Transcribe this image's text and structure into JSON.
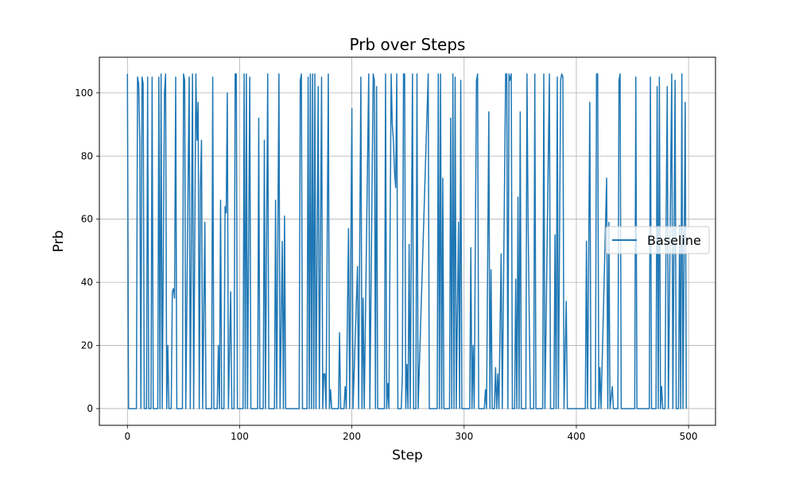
{
  "chart_data": {
    "type": "line",
    "title": "Prb over Steps",
    "xlabel": "Step",
    "ylabel": "Prb",
    "xlim": [
      -25,
      524
    ],
    "ylim": [
      -5.3,
      111.3
    ],
    "xticks": [
      0,
      100,
      200,
      300,
      400,
      500
    ],
    "yticks": [
      0,
      20,
      40,
      60,
      80,
      100
    ],
    "grid": true,
    "legend": {
      "placement": "center-right",
      "entries": [
        "Baseline"
      ]
    },
    "series": [
      {
        "name": "Baseline",
        "color": "#1f77b4",
        "points": [
          [
            0,
            106
          ],
          [
            1,
            0
          ],
          [
            8,
            0
          ],
          [
            9,
            105
          ],
          [
            10,
            103
          ],
          [
            11,
            85
          ],
          [
            12,
            0
          ],
          [
            13,
            105
          ],
          [
            14,
            103
          ],
          [
            15,
            0
          ],
          [
            17,
            0
          ],
          [
            18,
            105
          ],
          [
            19,
            0
          ],
          [
            21,
            0
          ],
          [
            22,
            105
          ],
          [
            23,
            0
          ],
          [
            27,
            0
          ],
          [
            28,
            105
          ],
          [
            29,
            0
          ],
          [
            30,
            106
          ],
          [
            31,
            0
          ],
          [
            33,
            100
          ],
          [
            34,
            106
          ],
          [
            35,
            0
          ],
          [
            36,
            20
          ],
          [
            37,
            0
          ],
          [
            39,
            0
          ],
          [
            40,
            37
          ],
          [
            41,
            38
          ],
          [
            42,
            35
          ],
          [
            43,
            105
          ],
          [
            44,
            0
          ],
          [
            49,
            0
          ],
          [
            50,
            106
          ],
          [
            51,
            104
          ],
          [
            52,
            0
          ],
          [
            55,
            105
          ],
          [
            56,
            0
          ],
          [
            58,
            106
          ],
          [
            59,
            0
          ],
          [
            61,
            106
          ],
          [
            62,
            85
          ],
          [
            63,
            97
          ],
          [
            64,
            0
          ],
          [
            65,
            70
          ],
          [
            66,
            85
          ],
          [
            67,
            0
          ],
          [
            69,
            59
          ],
          [
            70,
            0
          ],
          [
            75,
            0
          ],
          [
            76,
            105
          ],
          [
            77,
            0
          ],
          [
            80,
            0
          ],
          [
            81,
            20
          ],
          [
            82,
            0
          ],
          [
            83,
            66
          ],
          [
            84,
            0
          ],
          [
            86,
            0
          ],
          [
            87,
            64
          ],
          [
            88,
            62
          ],
          [
            89,
            100
          ],
          [
            90,
            0
          ],
          [
            92,
            37
          ],
          [
            93,
            0
          ],
          [
            95,
            0
          ],
          [
            96,
            106
          ],
          [
            97,
            106
          ],
          [
            98,
            0
          ],
          [
            103,
            0
          ],
          [
            104,
            106
          ],
          [
            105,
            0
          ],
          [
            106,
            106
          ],
          [
            107,
            0
          ],
          [
            109,
            105
          ],
          [
            110,
            0
          ],
          [
            116,
            0
          ],
          [
            117,
            92
          ],
          [
            118,
            0
          ],
          [
            121,
            0
          ],
          [
            122,
            85
          ],
          [
            123,
            0
          ],
          [
            125,
            106
          ],
          [
            126,
            0
          ],
          [
            131,
            0
          ],
          [
            132,
            66
          ],
          [
            133,
            0
          ],
          [
            135,
            106
          ],
          [
            136,
            0
          ],
          [
            138,
            53
          ],
          [
            139,
            0
          ],
          [
            140,
            61
          ],
          [
            141,
            0
          ],
          [
            153,
            0
          ],
          [
            154,
            104
          ],
          [
            155,
            106
          ],
          [
            156,
            0
          ],
          [
            160,
            0
          ],
          [
            161,
            105
          ],
          [
            162,
            0
          ],
          [
            163,
            106
          ],
          [
            164,
            0
          ],
          [
            165,
            106
          ],
          [
            166,
            0
          ],
          [
            167,
            106
          ],
          [
            168,
            0
          ],
          [
            170,
            102
          ],
          [
            171,
            0
          ],
          [
            173,
            105
          ],
          [
            174,
            0
          ],
          [
            175,
            11
          ],
          [
            176,
            11
          ],
          [
            177,
            0
          ],
          [
            179,
            106
          ],
          [
            180,
            0
          ],
          [
            181,
            6
          ],
          [
            182,
            0
          ],
          [
            188,
            0
          ],
          [
            189,
            24
          ],
          [
            190,
            0
          ],
          [
            193,
            0
          ],
          [
            194,
            7
          ],
          [
            195,
            0
          ],
          [
            197,
            57
          ],
          [
            198,
            0
          ],
          [
            200,
            95
          ],
          [
            201,
            0
          ],
          [
            205,
            45
          ],
          [
            206,
            0
          ],
          [
            208,
            105
          ],
          [
            209,
            0
          ],
          [
            210,
            35
          ],
          [
            211,
            0
          ],
          [
            215,
            106
          ],
          [
            216,
            0
          ],
          [
            219,
            106
          ],
          [
            220,
            104
          ],
          [
            221,
            0
          ],
          [
            222,
            102
          ],
          [
            223,
            0
          ],
          [
            229,
            0
          ],
          [
            230,
            106
          ],
          [
            231,
            0
          ],
          [
            232,
            8
          ],
          [
            233,
            0
          ],
          [
            235,
            106
          ],
          [
            236,
            90
          ],
          [
            237,
            85
          ],
          [
            238,
            75
          ],
          [
            239,
            70
          ],
          [
            240,
            106
          ],
          [
            241,
            0
          ],
          [
            244,
            0
          ],
          [
            245,
            11
          ],
          [
            246,
            106
          ],
          [
            247,
            106
          ],
          [
            248,
            0
          ],
          [
            249,
            14
          ],
          [
            250,
            0
          ],
          [
            251,
            52
          ],
          [
            252,
            0
          ],
          [
            254,
            106
          ],
          [
            255,
            0
          ],
          [
            257,
            0
          ],
          [
            258,
            106
          ],
          [
            259,
            0
          ],
          [
            268,
            106
          ],
          [
            269,
            0
          ],
          [
            276,
            0
          ],
          [
            277,
            106
          ],
          [
            278,
            0
          ],
          [
            279,
            106
          ],
          [
            280,
            0
          ],
          [
            281,
            73
          ],
          [
            282,
            0
          ],
          [
            287,
            0
          ],
          [
            288,
            92
          ],
          [
            289,
            0
          ],
          [
            290,
            106
          ],
          [
            291,
            0
          ],
          [
            292,
            105
          ],
          [
            293,
            0
          ],
          [
            295,
            59
          ],
          [
            296,
            0
          ],
          [
            297,
            104
          ],
          [
            298,
            0
          ],
          [
            305,
            0
          ],
          [
            306,
            51
          ],
          [
            307,
            0
          ],
          [
            308,
            20
          ],
          [
            309,
            0
          ],
          [
            311,
            104
          ],
          [
            312,
            106
          ],
          [
            313,
            0
          ],
          [
            318,
            0
          ],
          [
            319,
            6
          ],
          [
            320,
            0
          ],
          [
            322,
            94
          ],
          [
            323,
            0
          ],
          [
            324,
            44
          ],
          [
            325,
            0
          ],
          [
            327,
            0
          ],
          [
            328,
            13
          ],
          [
            329,
            0
          ],
          [
            330,
            11
          ],
          [
            331,
            0
          ],
          [
            333,
            49
          ],
          [
            334,
            0
          ],
          [
            337,
            106
          ],
          [
            338,
            106
          ],
          [
            339,
            0
          ],
          [
            340,
            106
          ],
          [
            341,
            104
          ],
          [
            342,
            106
          ],
          [
            343,
            0
          ],
          [
            345,
            0
          ],
          [
            346,
            41
          ],
          [
            347,
            0
          ],
          [
            348,
            67
          ],
          [
            349,
            0
          ],
          [
            350,
            94
          ],
          [
            351,
            0
          ],
          [
            355,
            0
          ],
          [
            356,
            106
          ],
          [
            357,
            60
          ],
          [
            358,
            30
          ],
          [
            359,
            0
          ],
          [
            362,
            0
          ],
          [
            363,
            106
          ],
          [
            364,
            0
          ],
          [
            370,
            0
          ],
          [
            371,
            106
          ],
          [
            372,
            0
          ],
          [
            376,
            106
          ],
          [
            377,
            0
          ],
          [
            380,
            0
          ],
          [
            381,
            55
          ],
          [
            382,
            0
          ],
          [
            383,
            105
          ],
          [
            384,
            0
          ],
          [
            386,
            104
          ],
          [
            387,
            106
          ],
          [
            388,
            105
          ],
          [
            389,
            0
          ],
          [
            391,
            34
          ],
          [
            392,
            0
          ],
          [
            408,
            0
          ],
          [
            409,
            53
          ],
          [
            410,
            0
          ],
          [
            412,
            97
          ],
          [
            413,
            0
          ],
          [
            417,
            0
          ],
          [
            418,
            106
          ],
          [
            419,
            106
          ],
          [
            420,
            0
          ],
          [
            421,
            13
          ],
          [
            422,
            0
          ],
          [
            427,
            73
          ],
          [
            428,
            0
          ],
          [
            429,
            59
          ],
          [
            430,
            0
          ],
          [
            432,
            7
          ],
          [
            433,
            0
          ],
          [
            437,
            0
          ],
          [
            438,
            104
          ],
          [
            439,
            106
          ],
          [
            440,
            0
          ],
          [
            452,
            0
          ],
          [
            453,
            105
          ],
          [
            454,
            0
          ],
          [
            465,
            0
          ],
          [
            466,
            105
          ],
          [
            467,
            0
          ],
          [
            471,
            0
          ],
          [
            472,
            102
          ],
          [
            473,
            0
          ],
          [
            474,
            105
          ],
          [
            475,
            0
          ],
          [
            476,
            7
          ],
          [
            477,
            0
          ],
          [
            479,
            0
          ],
          [
            480,
            60
          ],
          [
            481,
            102
          ],
          [
            482,
            0
          ],
          [
            485,
            106
          ],
          [
            486,
            0
          ],
          [
            488,
            104
          ],
          [
            489,
            0
          ],
          [
            491,
            0
          ],
          [
            492,
            58
          ],
          [
            493,
            0
          ],
          [
            494,
            106
          ],
          [
            495,
            0
          ],
          [
            497,
            97
          ],
          [
            498,
            0
          ]
        ]
      }
    ]
  }
}
